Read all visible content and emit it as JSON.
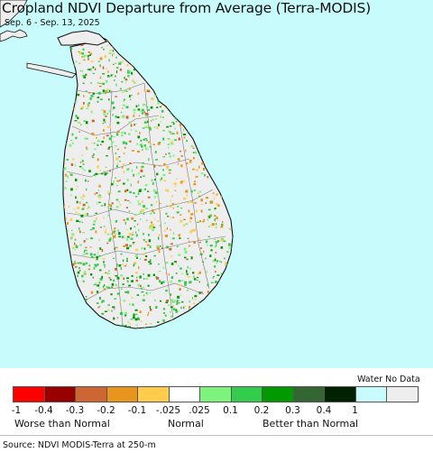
{
  "map": {
    "title": "Cropland NDVI Departure from Average (Terra-MODIS)",
    "date_range": "Sep. 6 - Sep. 13, 2025",
    "ocean_color": "#c8fcfc",
    "land_color": "#eeeeee"
  },
  "legend": {
    "water_no_data_label": "Water No Data",
    "swatches": [
      {
        "color": "#ff0000"
      },
      {
        "color": "#990000"
      },
      {
        "color": "#cc6633"
      },
      {
        "color": "#e8951e"
      },
      {
        "color": "#ffcc4d"
      },
      {
        "color": "#ffffff"
      },
      {
        "color": "#7df37d"
      },
      {
        "color": "#33cc4d"
      },
      {
        "color": "#009900"
      },
      {
        "color": "#336633"
      },
      {
        "color": "#002200"
      },
      {
        "color": "#c8fcfc"
      },
      {
        "color": "#eeeeee"
      }
    ],
    "ticks": [
      "-1",
      "-0.4",
      "-0.3",
      "-0.2",
      "-0.1",
      "-.025",
      ".025",
      "0.1",
      "0.2",
      "0.3",
      "0.4",
      "1"
    ],
    "categories": {
      "worse": "Worse than Normal",
      "normal": "Normal",
      "better": "Better than Normal"
    }
  },
  "source": "Source: NDVI MODIS-Terra at 250-m"
}
